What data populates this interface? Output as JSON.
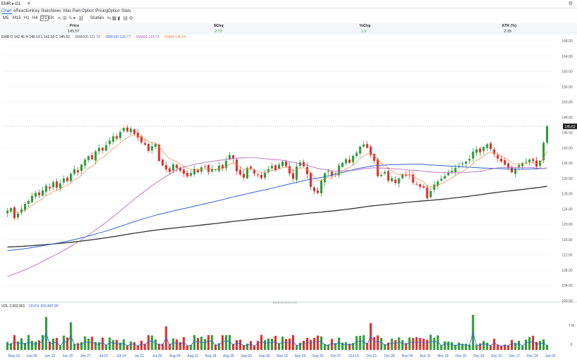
{
  "header": {
    "symbol": "EMR",
    "interval": "D1",
    "close_icon": "close-icon",
    "settings_icon": "gear-icon"
  },
  "tabs": [
    {
      "label": "Chart",
      "active": true
    },
    {
      "label": "eReaction"
    },
    {
      "label": "Key Stats"
    },
    {
      "label": "News"
    },
    {
      "label": "Max Pain"
    },
    {
      "label": "Option Pricing"
    },
    {
      "label": "Option Stats"
    }
  ],
  "timeframes": [
    "M5",
    "M15",
    "H1",
    "H4",
    "D1",
    "EK"
  ],
  "selected_timeframe": "D1",
  "toolbar": {
    "studies_label": "Studies"
  },
  "quote": {
    "price_label": "Price",
    "price": "145.57",
    "chg_label": "$Chg",
    "chg": "2.72",
    "pct_label": "%Chg",
    "pct": "1.9",
    "atr_label": "ATR (%)",
    "atr": "2.35"
  },
  "legend": {
    "ohlc": "EMR O 142.45  H 146.19  L 142.10  C 145.62",
    "sma200": "SMA200 121.70",
    "sma100": "SMA100 133.77",
    "sma50": "SMA50 133.73",
    "ema8": "EMA8 138.64"
  },
  "volume_legend": {
    "vol": "VOL 2,902,991",
    "tdvol": "10VOL 559,842.90"
  },
  "watermark": "www.ainvest.com",
  "colors": {
    "up": "#2e9b3a",
    "down": "#d9302b",
    "sma200": "#333333",
    "sma100": "#2e63d6",
    "sma50": "#b35ab8",
    "ema8": "#f0874a",
    "volume_line": "#2e63d6"
  },
  "chart_data": {
    "type": "candlestick",
    "price_axis": {
      "min": 100,
      "max": 168,
      "ticks": [
        100,
        104,
        108,
        112,
        116,
        120,
        124,
        128,
        132,
        136,
        140,
        144,
        148,
        152,
        156,
        160,
        164,
        168
      ]
    },
    "last_price_label": "145.62",
    "x_labels": [
      "May 29",
      "Jun 05",
      "Jun 12",
      "Jun 20",
      "Jun 27",
      "Jul 07",
      "Jul 14",
      "Jul 21",
      "Jul 28",
      "Aug 04",
      "Aug 11",
      "Aug 18",
      "Aug 25",
      "Sep 02",
      "Sep 09",
      "Sep 16",
      "Sep 23",
      "Sep 30",
      "Oct 07",
      "Oct 14",
      "Oct 21",
      "Oct 28",
      "Nov 04",
      "Nov 11",
      "Nov 18",
      "Nov 25",
      "Dec 03",
      "Dec 10",
      "Dec 17",
      "Dec 24",
      "Jan 02"
    ],
    "closes": [
      123.5,
      124.2,
      121.6,
      122.8,
      123.9,
      125.3,
      126.1,
      127.4,
      128.2,
      127.6,
      128.9,
      130.1,
      129.4,
      131.0,
      129.6,
      130.7,
      132.0,
      131.3,
      133.2,
      134.4,
      133.6,
      135.6,
      136.9,
      137.8,
      137.0,
      139.1,
      140.0,
      139.3,
      140.7,
      141.9,
      143.0,
      142.4,
      144.1,
      145.2,
      144.3,
      145.0,
      143.6,
      142.7,
      141.4,
      140.8,
      139.2,
      140.4,
      141.0,
      136.6,
      135.4,
      134.4,
      133.7,
      135.7,
      134.7,
      134.0,
      133.2,
      132.5,
      133.4,
      134.5,
      133.6,
      134.9,
      135.1,
      133.7,
      134.5,
      134.3,
      135.3,
      134.6,
      136.6,
      138.1,
      137.2,
      133.9,
      133.0,
      132.2,
      134.7,
      134.6,
      133.3,
      132.9,
      132.1,
      133.4,
      134.4,
      135.3,
      134.2,
      135.6,
      136.4,
      135.2,
      133.3,
      131.9,
      135.1,
      136.2,
      135.2,
      133.1,
      129.8,
      128.7,
      128.2,
      131.4,
      133.4,
      133.9,
      132.7,
      133.2,
      135.4,
      136.1,
      137.0,
      136.1,
      137.9,
      138.7,
      140.3,
      140.9,
      140.0,
      138.1,
      136.6,
      132.6,
      132.9,
      133.7,
      131.4,
      132.1,
      130.8,
      132.0,
      133.1,
      132.7,
      132.9,
      130.9,
      130.4,
      129.8,
      129.6,
      126.8,
      128.7,
      130.4,
      131.2,
      131.9,
      132.6,
      133.5,
      134.0,
      134.7,
      135.3,
      135.9,
      136.4,
      137.1,
      139.0,
      139.6,
      138.8,
      140.2,
      140.9,
      139.7,
      138.4,
      137.2,
      136.4,
      135.6,
      134.7,
      133.6,
      134.6,
      135.5,
      136.0,
      136.3,
      136.9,
      136.6,
      135.1,
      136.6,
      141.3,
      145.62
    ],
    "volume_axis": {
      "ticks": [
        "7 M",
        "0"
      ],
      "max_millions": 10
    }
  }
}
